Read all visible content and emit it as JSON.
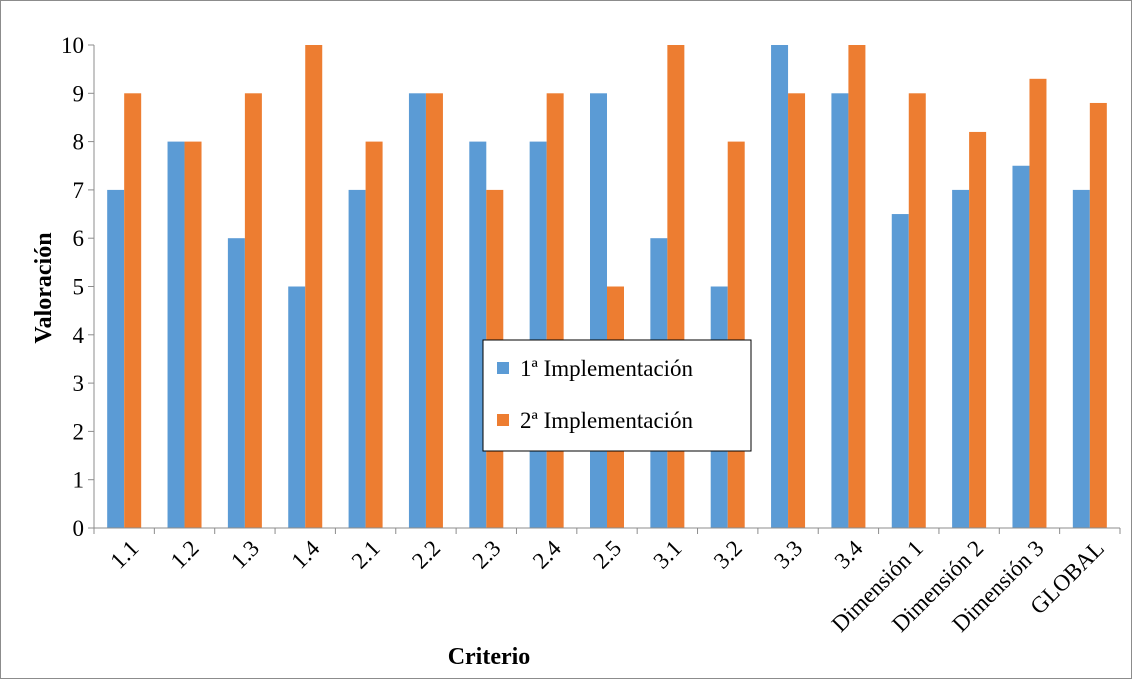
{
  "chart_data": {
    "type": "bar",
    "title": "",
    "xlabel": "Criterio",
    "ylabel": "Valoración",
    "ylim": [
      0,
      10
    ],
    "yticks": [
      0,
      1,
      2,
      3,
      4,
      5,
      6,
      7,
      8,
      9,
      10
    ],
    "grid": false,
    "legend_position": "center",
    "categories": [
      "1.1",
      "1.2",
      "1.3",
      "1.4",
      "2.1",
      "2.2",
      "2.3",
      "2.4",
      "2.5",
      "3.1",
      "3.2",
      "3.3",
      "3.4",
      "Dimensión 1",
      "Dimensión 2",
      "Dimensión 3",
      "GLOBAL"
    ],
    "series": [
      {
        "name": "1ª Implementación",
        "color": "#5b9bd5",
        "values": [
          7,
          8,
          6,
          5,
          7,
          9,
          8,
          8,
          9,
          6,
          5,
          10,
          9,
          6.5,
          7,
          7.5,
          7
        ]
      },
      {
        "name": "2ª Implementación",
        "color": "#ed7d31",
        "values": [
          9,
          8,
          9,
          10,
          8,
          9,
          7,
          9,
          5,
          10,
          8,
          9,
          10,
          9,
          8.2,
          9.3,
          8.8
        ]
      }
    ]
  }
}
